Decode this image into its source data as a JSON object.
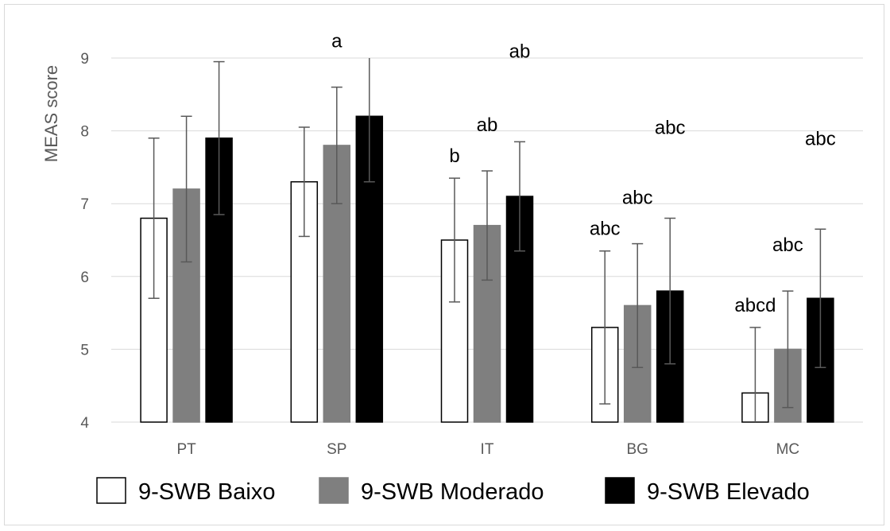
{
  "chart_data": {
    "type": "bar",
    "ylabel": "MEAS score",
    "ylim": [
      4,
      9
    ],
    "yticks": [
      4,
      5,
      6,
      7,
      8,
      9
    ],
    "grid": true,
    "legend_position": "bottom",
    "categories": [
      "PT",
      "SP",
      "IT",
      "BG",
      "MC"
    ],
    "series": [
      {
        "name": "9-SWB Baixo",
        "color": "#ffffff",
        "stroke": "#000000",
        "values": [
          6.8,
          7.3,
          6.5,
          5.3,
          4.4
        ],
        "err_low": [
          5.7,
          6.55,
          5.65,
          4.25,
          3.5
        ],
        "err_high": [
          7.9,
          8.05,
          7.35,
          6.35,
          5.3
        ],
        "labels": [
          "",
          "",
          "b",
          "abc",
          "abcd"
        ]
      },
      {
        "name": "9-SWB Moderado",
        "color": "#7f7f7f",
        "stroke": "#7f7f7f",
        "values": [
          7.2,
          7.8,
          6.7,
          5.6,
          5.0
        ],
        "err_low": [
          6.2,
          7.0,
          5.95,
          4.75,
          4.2
        ],
        "err_high": [
          8.2,
          8.6,
          7.45,
          6.45,
          5.8
        ],
        "labels": [
          "",
          "a",
          "ab",
          "abc",
          "abc"
        ]
      },
      {
        "name": "9-SWB Elevado",
        "color": "#000000",
        "stroke": "#000000",
        "values": [
          7.9,
          8.2,
          7.1,
          5.8,
          5.7
        ],
        "err_low": [
          6.85,
          7.3,
          6.35,
          4.8,
          4.75
        ],
        "err_high": [
          8.95,
          9.1,
          7.85,
          6.8,
          6.65
        ],
        "labels": [
          "",
          "",
          "ab",
          "abc",
          "abc"
        ]
      }
    ]
  }
}
